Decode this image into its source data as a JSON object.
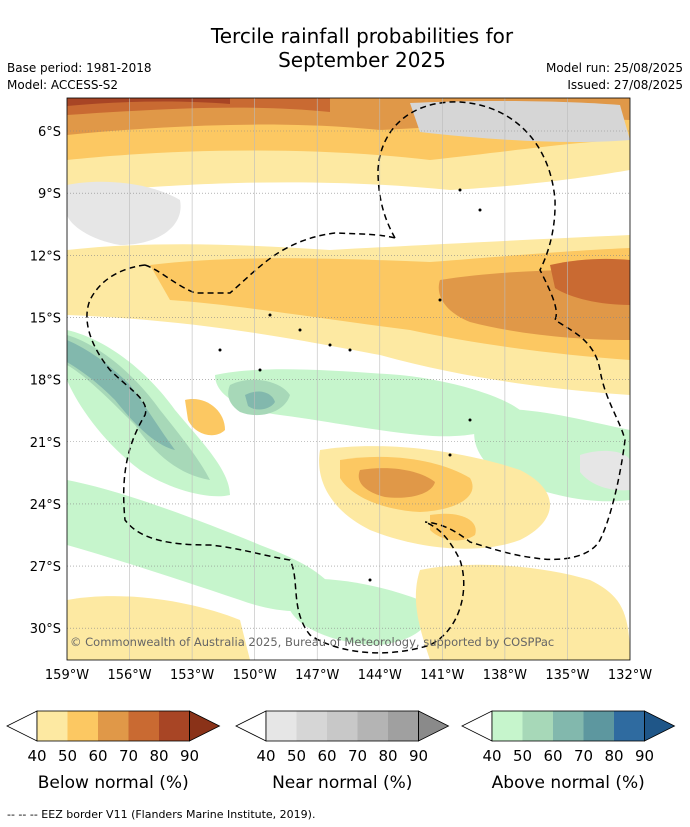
{
  "title_line1": "Tercile rainfall probabilities for",
  "title_line2": "September 2025",
  "meta_left": {
    "base_period": "Base period: 1981-2018",
    "model": "Model: ACCESS-S2"
  },
  "meta_right": {
    "model_run": "Model run: 25/08/2025",
    "issued": "Issued: 27/08/2025"
  },
  "map": {
    "y_ticks": [
      "6°S",
      "9°S",
      "12°S",
      "15°S",
      "18°S",
      "21°S",
      "24°S",
      "27°S",
      "30°S"
    ],
    "x_ticks": [
      "159°W",
      "156°W",
      "153°W",
      "150°W",
      "147°W",
      "144°W",
      "141°W",
      "138°W",
      "135°W",
      "132°W"
    ],
    "copyright": "© Commonwealth of Australia 2025, Bureau of Meteorology, supported by COSPPac",
    "grid": true
  },
  "legends": [
    {
      "title": "Below normal (%)",
      "ticks": [
        "40",
        "50",
        "60",
        "70",
        "80",
        "90"
      ],
      "colors": [
        "#fde9a2",
        "#fcc862",
        "#e09848",
        "#c96a32",
        "#a84525",
        "#8a3218"
      ]
    },
    {
      "title": "Near normal (%)",
      "ticks": [
        "40",
        "50",
        "60",
        "70",
        "80",
        "90"
      ],
      "colors": [
        "#e6e6e6",
        "#d6d6d6",
        "#c8c8c8",
        "#b4b4b4",
        "#a0a0a0",
        "#8a8a8a"
      ]
    },
    {
      "title": "Above normal (%)",
      "ticks": [
        "40",
        "50",
        "60",
        "70",
        "80",
        "90"
      ],
      "colors": [
        "#c6f5cc",
        "#a7d8b8",
        "#82b8ad",
        "#5d979f",
        "#2f6ba0",
        "#1f5688"
      ]
    }
  ],
  "footer": "--  --  -- EEZ border V11 (Flanders Marine Institute, 2019)."
}
